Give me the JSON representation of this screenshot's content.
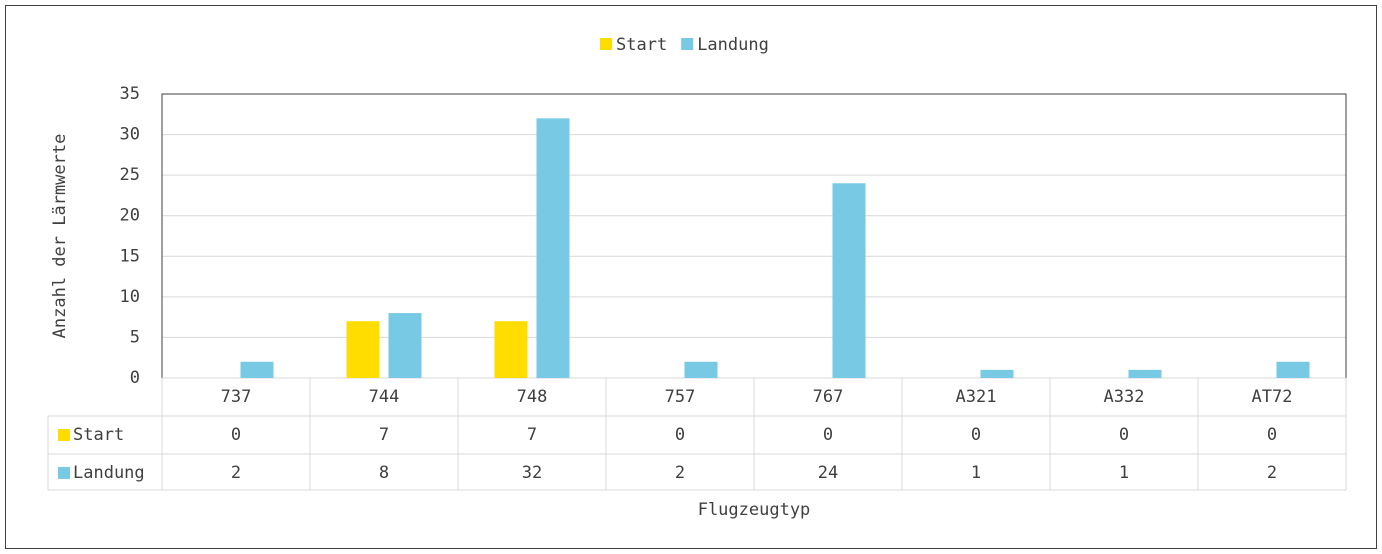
{
  "chart_data": {
    "type": "bar",
    "categories": [
      "737",
      "744",
      "748",
      "757",
      "767",
      "A321",
      "A332",
      "AT72"
    ],
    "series": [
      {
        "name": "Start",
        "color": "#ffdd00",
        "values": [
          0,
          7,
          7,
          0,
          0,
          0,
          0,
          0
        ]
      },
      {
        "name": "Landung",
        "color": "#77c9e4",
        "values": [
          2,
          8,
          32,
          2,
          24,
          1,
          1,
          2
        ]
      }
    ],
    "ylim": [
      0,
      35
    ],
    "yticks": [
      0,
      5,
      10,
      15,
      20,
      25,
      30,
      35
    ],
    "x_label": "Flugzeugtyp",
    "y_label": "Anzahl der Lärmwerte",
    "grid": true,
    "legend": "top",
    "data_table": true
  }
}
